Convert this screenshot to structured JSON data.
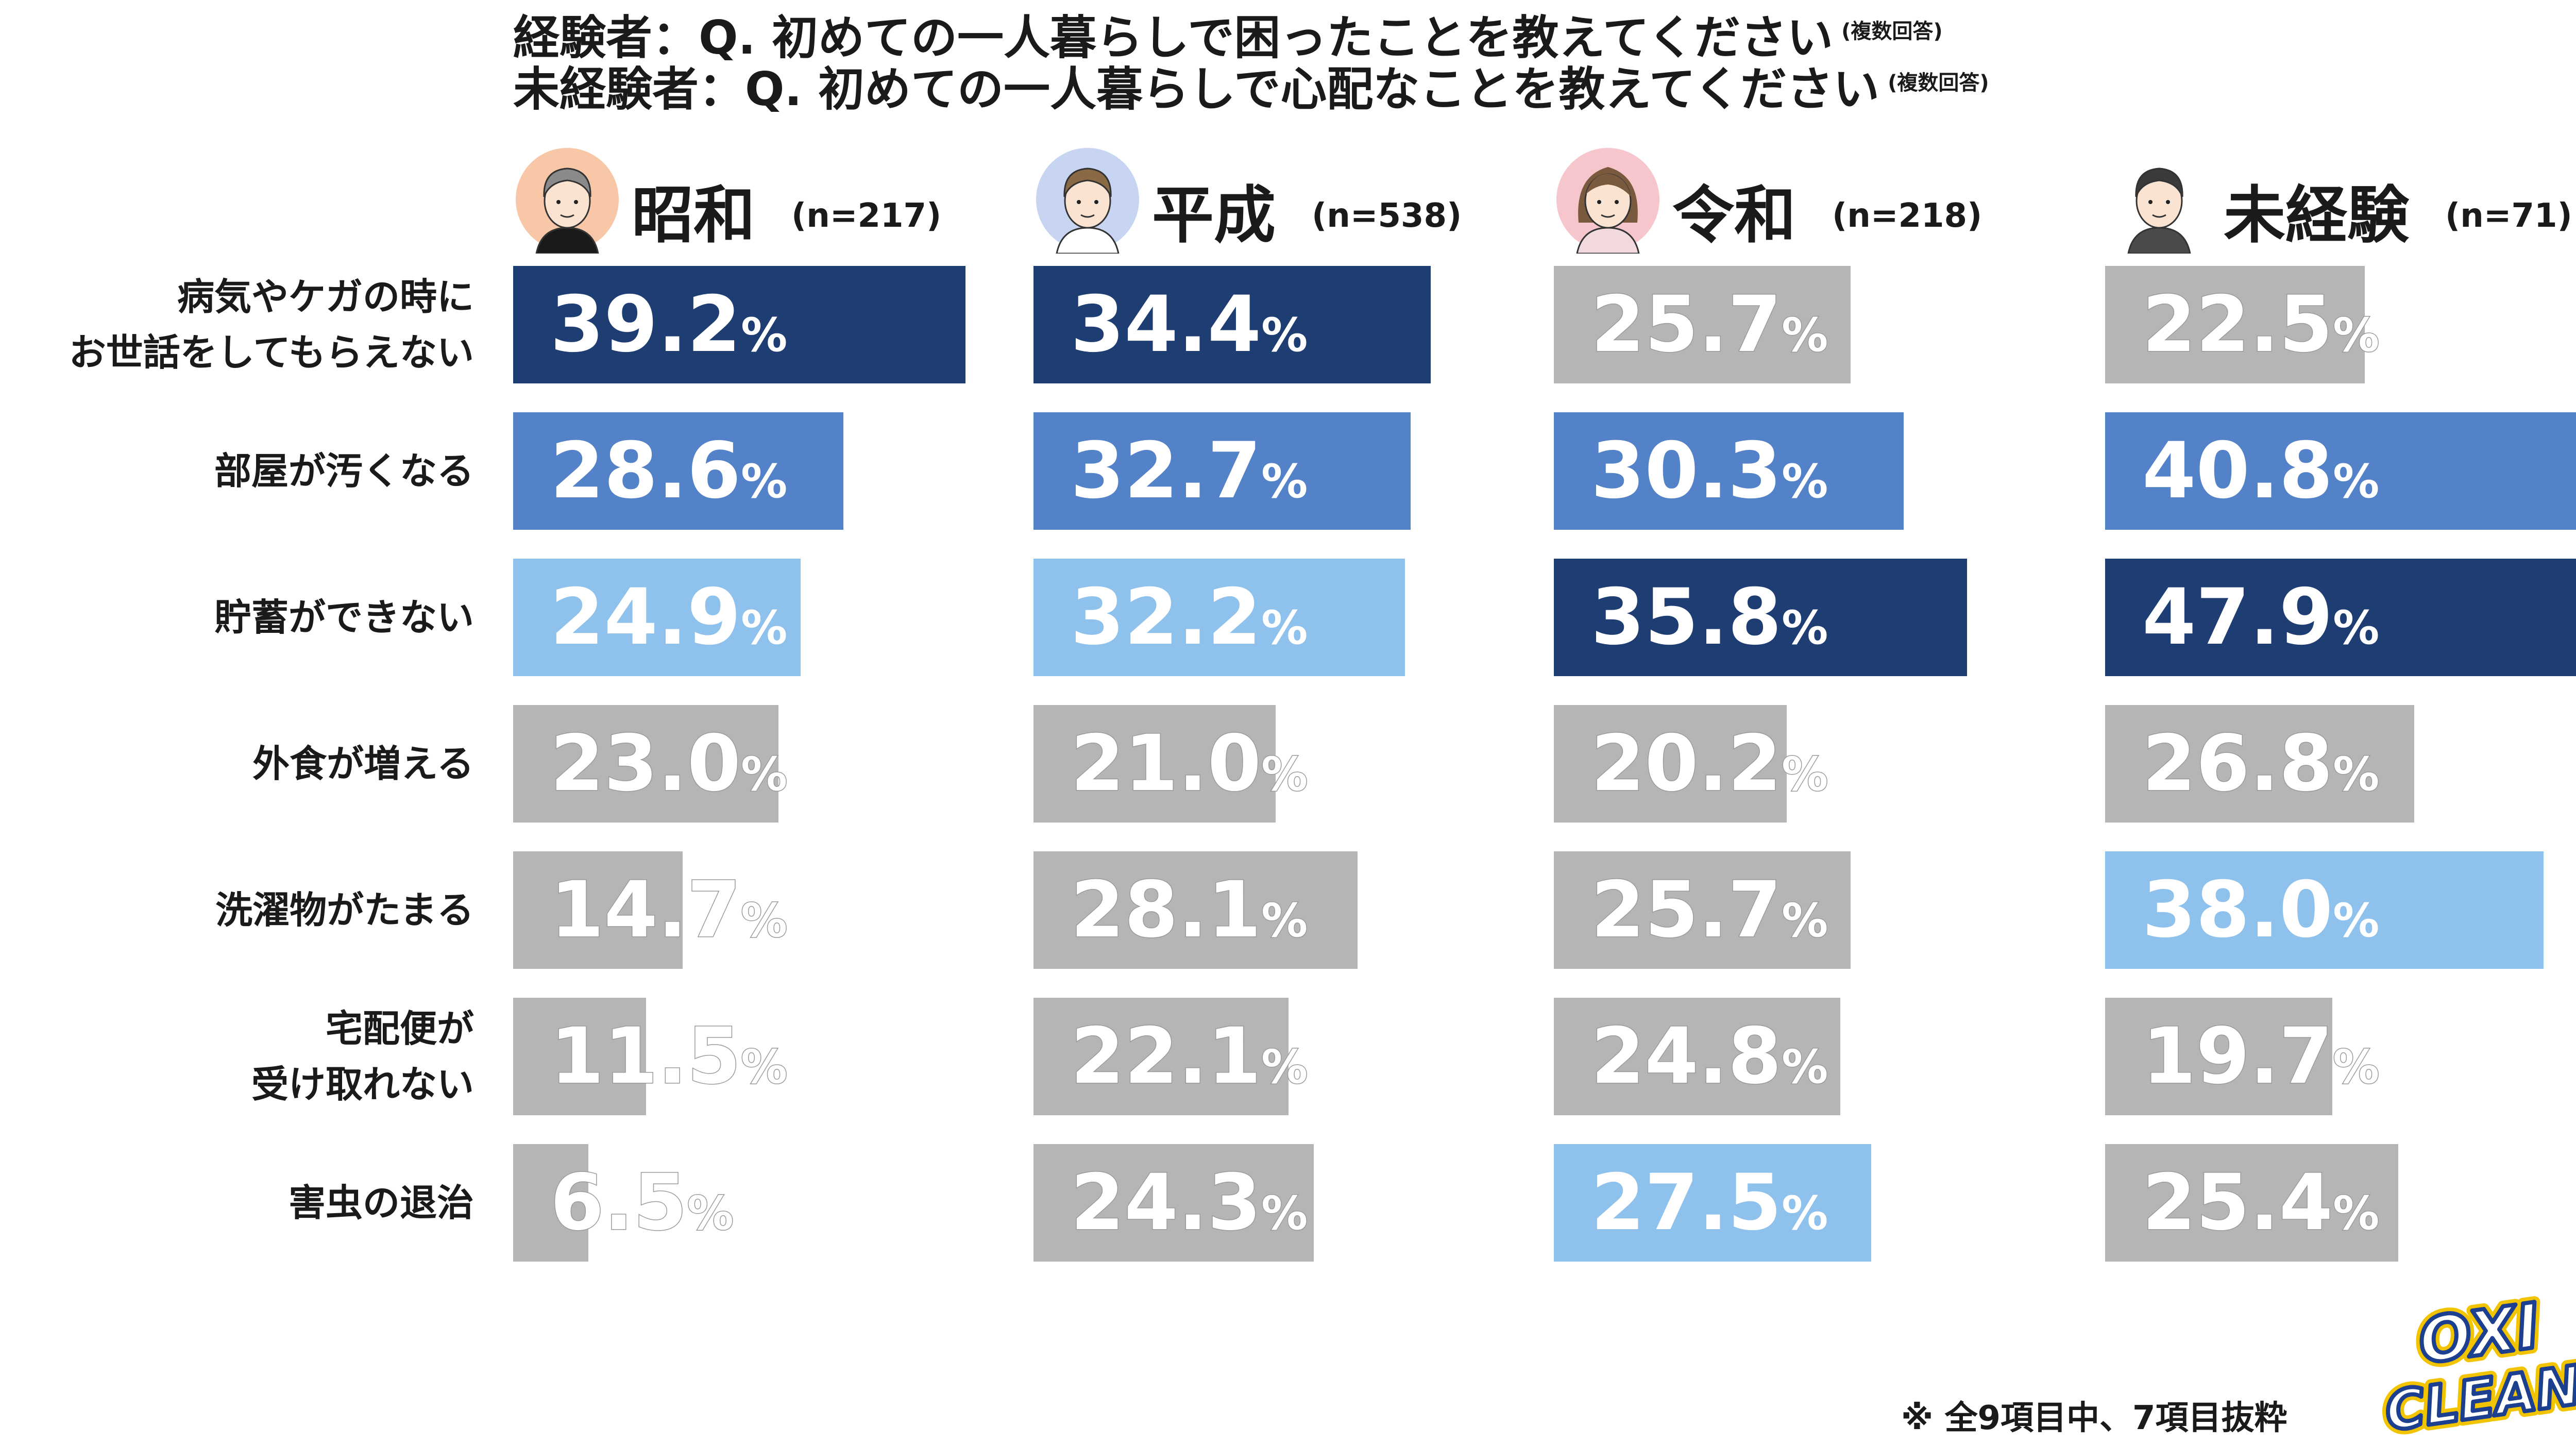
{
  "title": {
    "line1": "経験者：Q. 初めての一人暮らしで困ったことを教えてください",
    "line1_note": "(複数回答)",
    "line2": "未経験者：Q. 初めての一人暮らしで心配なことを教えてください",
    "line2_note": "(複数回答)"
  },
  "footnote": "※ 全9項目中、7項目抜粋",
  "logo": {
    "line1": "OXI",
    "line2": "CLEAN"
  },
  "colors": {
    "rank1": "#1e3d73",
    "rank2": "#5482c8",
    "rank3": "#8ec1ec",
    "other": "#b5b5b5"
  },
  "chart_data": {
    "type": "bar",
    "orientation": "horizontal",
    "categories": [
      "病気やケガの時に\nお世話をしてもらえない",
      "部屋が汚くなる",
      "貯蓄ができない",
      "外食が増える",
      "洗濯物がたまる",
      "宅配便が\n受け取れない",
      "害虫の退治"
    ],
    "unit": "%",
    "series": [
      {
        "name": "昭和",
        "n_label": "(n=217)",
        "avatar": "older-man-avatar-icon",
        "values": [
          39.2,
          28.6,
          24.9,
          23.0,
          14.7,
          11.5,
          6.5
        ],
        "value_labels": [
          "39.2",
          "28.6",
          "24.9",
          "23.0",
          "14.7",
          "11.5",
          "6.5"
        ],
        "ranks": [
          1,
          2,
          3,
          0,
          0,
          0,
          0
        ]
      },
      {
        "name": "平成",
        "n_label": "(n=538)",
        "avatar": "short-hair-person-avatar-icon",
        "values": [
          34.4,
          32.7,
          32.2,
          21.0,
          28.1,
          22.1,
          24.3
        ],
        "value_labels": [
          "34.4",
          "32.7",
          "32.2",
          "21.0",
          "28.1",
          "22.1",
          "24.3"
        ],
        "ranks": [
          1,
          2,
          3,
          0,
          0,
          0,
          0
        ]
      },
      {
        "name": "令和",
        "n_label": "(n=218)",
        "avatar": "long-hair-woman-avatar-icon",
        "values": [
          25.7,
          30.3,
          35.8,
          20.2,
          25.7,
          24.8,
          27.5
        ],
        "value_labels": [
          "25.7",
          "30.3",
          "35.8",
          "20.2",
          "25.7",
          "24.8",
          "27.5"
        ],
        "ranks": [
          0,
          2,
          1,
          0,
          0,
          0,
          3
        ]
      },
      {
        "name": "未経験",
        "n_label": "(n=71)",
        "avatar": "young-man-hoodie-avatar-icon",
        "values": [
          22.5,
          40.8,
          47.9,
          26.8,
          38.0,
          19.7,
          25.4
        ],
        "value_labels": [
          "22.5",
          "40.8",
          "47.9",
          "26.8",
          "38.0",
          "19.7",
          "25.4"
        ],
        "ranks": [
          0,
          2,
          1,
          0,
          3,
          0,
          0
        ]
      }
    ],
    "xlim": [
      0,
      48
    ]
  }
}
